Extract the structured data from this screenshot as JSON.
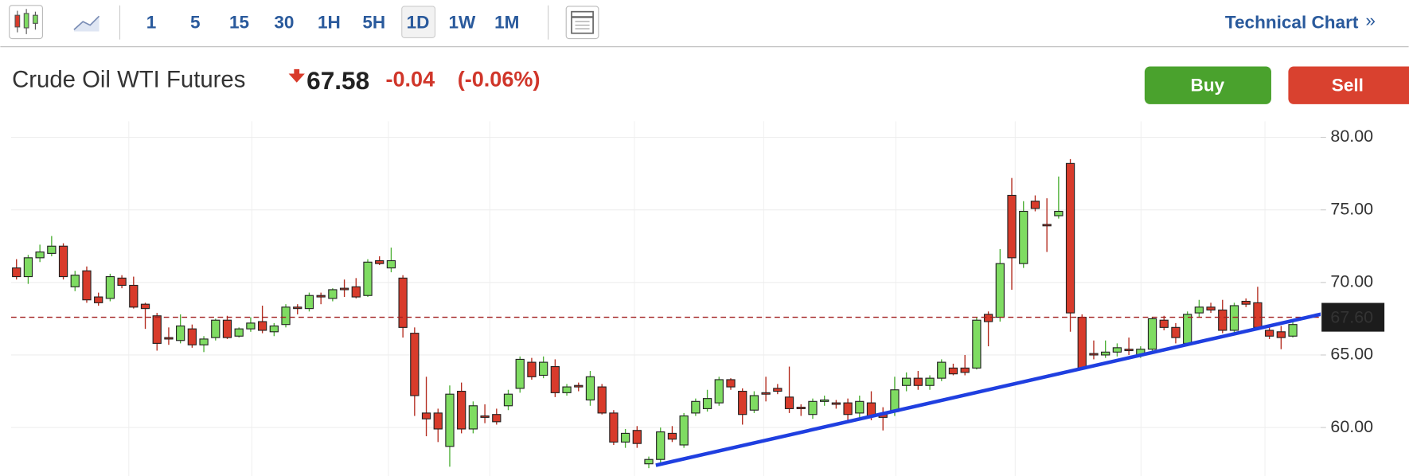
{
  "toolbar": {
    "timeframes": [
      "1",
      "5",
      "15",
      "30",
      "1H",
      "5H",
      "1D",
      "1W",
      "1M"
    ],
    "selected_index": 6,
    "link": "Technical Chart",
    "link_icon": "»"
  },
  "instrument": {
    "name": "Crude Oil WTI Futures",
    "price": "67.58",
    "change": "-0.04",
    "change_percent": "(-0.06%)"
  },
  "actions": {
    "buy": "Buy",
    "sell": "Sell"
  },
  "chart_data": {
    "type": "candlestick",
    "candles": [
      [
        71.0,
        71.6,
        70.2,
        70.4
      ],
      [
        70.4,
        71.9,
        69.9,
        71.7
      ],
      [
        71.7,
        72.6,
        71.4,
        72.1
      ],
      [
        72.0,
        73.2,
        71.8,
        72.5
      ],
      [
        72.5,
        72.7,
        70.2,
        70.4
      ],
      [
        69.7,
        70.8,
        69.4,
        70.5
      ],
      [
        70.8,
        71.1,
        68.6,
        68.8
      ],
      [
        69.0,
        69.3,
        68.4,
        68.6
      ],
      [
        68.9,
        70.6,
        68.7,
        70.4
      ],
      [
        70.3,
        70.5,
        69.6,
        69.8
      ],
      [
        69.8,
        70.4,
        68.2,
        68.3
      ],
      [
        68.5,
        68.6,
        66.8,
        68.2
      ],
      [
        67.7,
        67.9,
        65.3,
        65.8
      ],
      [
        66.2,
        66.9,
        65.7,
        66.1
      ],
      [
        66.0,
        67.8,
        65.8,
        67.0
      ],
      [
        66.8,
        67.1,
        65.5,
        65.7
      ],
      [
        65.7,
        66.3,
        65.2,
        66.1
      ],
      [
        66.2,
        67.5,
        66.0,
        67.4
      ],
      [
        67.4,
        67.7,
        66.1,
        66.2
      ],
      [
        66.3,
        66.9,
        66.2,
        66.8
      ],
      [
        66.8,
        67.6,
        66.6,
        67.2
      ],
      [
        67.3,
        68.4,
        66.5,
        66.7
      ],
      [
        66.6,
        67.2,
        66.3,
        67.0
      ],
      [
        67.1,
        68.5,
        66.9,
        68.3
      ],
      [
        68.3,
        68.5,
        67.8,
        68.2
      ],
      [
        68.2,
        69.3,
        68.0,
        69.1
      ],
      [
        69.1,
        69.3,
        68.5,
        69.0
      ],
      [
        68.9,
        69.6,
        68.7,
        69.5
      ],
      [
        69.6,
        70.2,
        69.0,
        69.5
      ],
      [
        69.7,
        70.3,
        68.9,
        69.0
      ],
      [
        69.1,
        71.6,
        69.0,
        71.4
      ],
      [
        71.5,
        71.8,
        71.2,
        71.3
      ],
      [
        71.0,
        72.4,
        70.7,
        71.5
      ],
      [
        70.3,
        70.5,
        66.2,
        66.9
      ],
      [
        66.5,
        66.9,
        60.8,
        62.2
      ],
      [
        61.0,
        63.5,
        59.4,
        60.6
      ],
      [
        61.0,
        61.3,
        59.0,
        59.9
      ],
      [
        58.7,
        62.9,
        57.3,
        62.3
      ],
      [
        62.5,
        63.1,
        59.6,
        59.9
      ],
      [
        59.9,
        61.8,
        59.6,
        61.5
      ],
      [
        60.8,
        61.6,
        60.3,
        60.7
      ],
      [
        60.9,
        61.3,
        60.2,
        60.4
      ],
      [
        61.5,
        62.6,
        61.2,
        62.3
      ],
      [
        62.7,
        64.9,
        62.4,
        64.7
      ],
      [
        64.5,
        64.8,
        63.3,
        63.5
      ],
      [
        63.6,
        64.9,
        63.4,
        64.5
      ],
      [
        64.2,
        64.7,
        62.1,
        62.4
      ],
      [
        62.4,
        63.0,
        62.2,
        62.8
      ],
      [
        62.9,
        63.1,
        62.5,
        62.8
      ],
      [
        61.9,
        63.9,
        61.5,
        63.5
      ],
      [
        62.8,
        63.0,
        60.9,
        61.0
      ],
      [
        61.0,
        61.2,
        58.8,
        59.0
      ],
      [
        59.0,
        59.9,
        58.6,
        59.6
      ],
      [
        59.8,
        60.1,
        58.6,
        58.9
      ],
      [
        57.5,
        58.0,
        57.2,
        57.8
      ],
      [
        57.8,
        60.0,
        57.6,
        59.7
      ],
      [
        59.6,
        60.1,
        59.0,
        59.2
      ],
      [
        58.8,
        61.0,
        58.6,
        60.8
      ],
      [
        61.0,
        62.0,
        60.8,
        61.8
      ],
      [
        61.3,
        62.6,
        61.1,
        62.0
      ],
      [
        61.7,
        63.5,
        61.5,
        63.3
      ],
      [
        63.3,
        63.4,
        62.6,
        62.8
      ],
      [
        62.5,
        62.7,
        60.2,
        60.9
      ],
      [
        61.2,
        62.5,
        61.0,
        62.2
      ],
      [
        62.4,
        63.5,
        61.8,
        62.3
      ],
      [
        62.7,
        63.0,
        62.3,
        62.5
      ],
      [
        62.1,
        64.2,
        61.0,
        61.3
      ],
      [
        61.4,
        61.6,
        60.8,
        61.3
      ],
      [
        60.9,
        62.0,
        60.6,
        61.8
      ],
      [
        61.8,
        62.2,
        61.5,
        61.9
      ],
      [
        61.7,
        61.9,
        61.3,
        61.6
      ],
      [
        61.7,
        62.0,
        60.3,
        60.9
      ],
      [
        61.0,
        62.2,
        60.6,
        61.8
      ],
      [
        61.7,
        62.5,
        60.5,
        60.8
      ],
      [
        60.9,
        61.4,
        59.8,
        60.7
      ],
      [
        61.1,
        63.5,
        60.8,
        62.6
      ],
      [
        62.9,
        63.8,
        62.5,
        63.4
      ],
      [
        63.4,
        63.9,
        62.6,
        62.9
      ],
      [
        62.9,
        63.6,
        62.6,
        63.4
      ],
      [
        63.4,
        64.7,
        63.2,
        64.5
      ],
      [
        64.1,
        64.4,
        63.6,
        63.7
      ],
      [
        64.1,
        65.0,
        63.6,
        63.8
      ],
      [
        64.1,
        67.6,
        64.0,
        67.4
      ],
      [
        67.8,
        68.0,
        65.6,
        67.3
      ],
      [
        67.6,
        72.3,
        67.3,
        71.3
      ],
      [
        76.0,
        77.2,
        69.5,
        71.7
      ],
      [
        71.3,
        75.6,
        71.0,
        74.9
      ],
      [
        75.6,
        76.0,
        74.9,
        75.1
      ],
      [
        74.0,
        75.8,
        72.1,
        73.9
      ],
      [
        74.6,
        77.3,
        74.4,
        74.9
      ],
      [
        78.2,
        78.5,
        66.6,
        67.9
      ],
      [
        67.6,
        67.8,
        64.0,
        64.1
      ],
      [
        65.1,
        66.0,
        64.7,
        65.0
      ],
      [
        65.0,
        66.0,
        64.8,
        65.2
      ],
      [
        65.2,
        65.8,
        64.9,
        65.5
      ],
      [
        65.4,
        66.2,
        65.0,
        65.3
      ],
      [
        65.0,
        65.6,
        64.8,
        65.4
      ],
      [
        65.4,
        67.6,
        65.2,
        67.5
      ],
      [
        67.4,
        67.7,
        66.7,
        66.9
      ],
      [
        66.9,
        67.2,
        65.8,
        66.2
      ],
      [
        65.8,
        68.0,
        65.6,
        67.8
      ],
      [
        67.9,
        68.8,
        67.6,
        68.3
      ],
      [
        68.3,
        68.6,
        67.9,
        68.1
      ],
      [
        68.1,
        68.8,
        66.5,
        66.7
      ],
      [
        66.7,
        68.6,
        66.5,
        68.4
      ],
      [
        68.7,
        68.9,
        68.3,
        68.5
      ],
      [
        68.6,
        69.7,
        66.7,
        66.9
      ],
      [
        66.7,
        67.1,
        66.1,
        66.3
      ],
      [
        66.6,
        67.0,
        65.4,
        66.2
      ],
      [
        66.3,
        67.4,
        66.2,
        67.1
      ]
    ],
    "ylim": [
      56.66,
      80.8
    ],
    "yticks": [
      {
        "value": 60,
        "label": "60.00"
      },
      {
        "value": 65,
        "label": "65.00"
      },
      {
        "value": 70,
        "label": "70.00"
      },
      {
        "value": 75,
        "label": "75.00"
      },
      {
        "value": 80,
        "label": "80.00"
      }
    ],
    "last_price": {
      "value": 67.6,
      "label": "67.60"
    },
    "trendline": {
      "x": [
        54.6,
        115.7
      ],
      "y": [
        57.4,
        68.6
      ],
      "color": "#1f3fe0"
    },
    "colors": {
      "up": "#7fdc62",
      "down": "#d83b2b"
    },
    "grid": true
  }
}
